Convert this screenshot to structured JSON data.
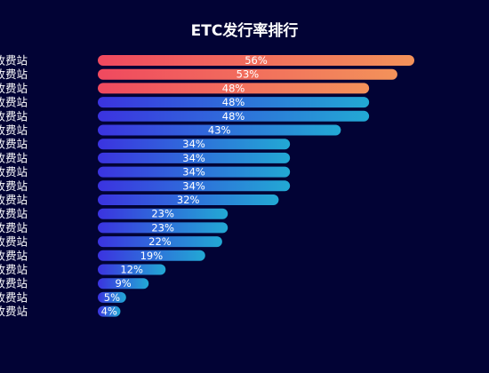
{
  "chart_data": {
    "type": "bar",
    "orientation": "horizontal",
    "title": "ETC发行率排行",
    "categories": [
      "收费站",
      "收费站",
      "收费站",
      "收费站",
      "收费站",
      "收费站",
      "收费站",
      "收费站",
      "收费站",
      "收费站",
      "收费站",
      "收费站收费站",
      "收费站",
      "收费站收费站",
      "收费站",
      "收费站",
      "收费站",
      "收费站",
      "收费站"
    ],
    "values": [
      56,
      53,
      48,
      48,
      48,
      43,
      34,
      34,
      34,
      34,
      32,
      23,
      23,
      22,
      19,
      12,
      9,
      5,
      4
    ],
    "value_labels": [
      "56%",
      "53%",
      "48%",
      "48%",
      "48%",
      "43%",
      "34%",
      "34%",
      "34%",
      "34%",
      "32%",
      "23%",
      "23%",
      "22%",
      "19%",
      "12%",
      "9%",
      "5%",
      "4%"
    ],
    "xlim": [
      0,
      60
    ],
    "grid": false,
    "legend": "none",
    "colors": {
      "background": "#020335",
      "top_start": "#f0495f",
      "top_end": "#f3925a",
      "rest_start": "#3b33e0",
      "rest_end": "#22a9d4",
      "text": "#ffffff"
    },
    "highlight_top_n": 3
  }
}
